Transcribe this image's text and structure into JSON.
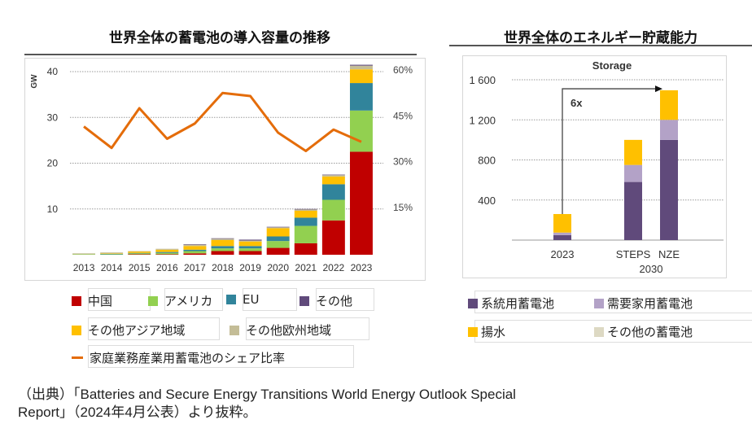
{
  "left": {
    "title": "世界全体の蓄電池の導入容量の推移",
    "legend": [
      {
        "label": "中国",
        "color": "#c00000",
        "kind": "box"
      },
      {
        "label": "アメリカ",
        "color": "#92d050",
        "kind": "box"
      },
      {
        "label": "EU",
        "color": "#31849b",
        "kind": "box"
      },
      {
        "label": "その他",
        "color": "#604a7b",
        "kind": "box"
      },
      {
        "label": "その他アジア地域",
        "color": "#ffc000",
        "kind": "box"
      },
      {
        "label": "その他欧州地域",
        "color": "#c4bd97",
        "kind": "box"
      },
      {
        "label": "家庭業務産業用蓄電池のシェア比率",
        "color": "#e46c0a",
        "kind": "line"
      }
    ]
  },
  "right": {
    "title": "世界全体のエネルギー貯蔵能力",
    "legend": [
      {
        "label": "系統用蓄電池",
        "color": "#604a7b"
      },
      {
        "label": "需要家用蓄電池",
        "color": "#b3a2c7"
      },
      {
        "label": "揚水",
        "color": "#ffc000"
      },
      {
        "label": "その他の蓄電池",
        "color": "#ddd9c3"
      }
    ]
  },
  "source_line1": "（出典）「Batteries and Secure Energy Transitions World Energy Outlook Special",
  "source_line2": "Report」（2024年4月公表）より抜粋。",
  "chart_data": [
    {
      "type": "bar",
      "stacked": true,
      "title": "世界全体の蓄電池の導入容量の推移",
      "ylabel": "GW",
      "ylim": [
        0,
        40
      ],
      "yticks": [
        10,
        20,
        30,
        40
      ],
      "y2lim": [
        0,
        60
      ],
      "y2ticks": [
        "15%",
        "30%",
        "45%",
        "60%"
      ],
      "grid": true,
      "categories": [
        "2013",
        "2014",
        "2015",
        "2016",
        "2017",
        "2018",
        "2019",
        "2020",
        "2021",
        "2022",
        "2023"
      ],
      "series": [
        {
          "name": "中国",
          "color": "#c00000",
          "values": [
            0.0,
            0.0,
            0.1,
            0.1,
            0.3,
            0.8,
            0.8,
            1.5,
            2.5,
            7.5,
            22.5
          ]
        },
        {
          "name": "アメリカ",
          "color": "#92d050",
          "values": [
            0.1,
            0.1,
            0.2,
            0.3,
            0.5,
            0.6,
            0.6,
            1.5,
            3.8,
            4.5,
            9.0
          ]
        },
        {
          "name": "EU",
          "color": "#31849b",
          "values": [
            0.0,
            0.1,
            0.1,
            0.2,
            0.3,
            0.5,
            0.5,
            1.0,
            1.8,
            3.4,
            6.0
          ]
        },
        {
          "name": "その他アジア地域",
          "color": "#ffc000",
          "values": [
            0.0,
            0.1,
            0.3,
            0.5,
            0.8,
            1.3,
            1.0,
            1.8,
            1.5,
            1.7,
            3.0
          ]
        },
        {
          "name": "その他欧州地域",
          "color": "#c4bd97",
          "values": [
            0.2,
            0.2,
            0.1,
            0.2,
            0.3,
            0.3,
            0.2,
            0.2,
            0.3,
            0.3,
            0.8
          ]
        },
        {
          "name": "その他",
          "color": "#604a7b",
          "values": [
            0.0,
            0.0,
            0.0,
            0.0,
            0.1,
            0.1,
            0.2,
            0.1,
            0.1,
            0.1,
            0.2
          ]
        }
      ],
      "line": {
        "name": "家庭業務産業用蓄電池のシェア比率",
        "color": "#e46c0a",
        "axis": "right",
        "values": [
          42,
          35,
          48,
          38,
          43,
          53,
          52,
          40,
          34,
          41,
          37
        ]
      }
    },
    {
      "type": "bar",
      "stacked": true,
      "title": "Storage",
      "ylim": [
        0,
        1600
      ],
      "yticks": [
        "400",
        "800",
        "1 200",
        "1 600"
      ],
      "grid": true,
      "categories": [
        "2023",
        "STEPS",
        "NZE"
      ],
      "group_label": "2030",
      "series": [
        {
          "name": "系統用蓄電池",
          "color": "#604a7b",
          "values": [
            50,
            580,
            1000
          ]
        },
        {
          "name": "需要家用蓄電池",
          "color": "#b3a2c7",
          "values": [
            25,
            170,
            200
          ]
        },
        {
          "name": "揚水",
          "color": "#ffc000",
          "values": [
            185,
            250,
            295
          ]
        },
        {
          "name": "その他の蓄電池",
          "color": "#ddd9c3",
          "values": [
            0,
            0,
            0
          ]
        }
      ],
      "annotation": "6x"
    }
  ]
}
